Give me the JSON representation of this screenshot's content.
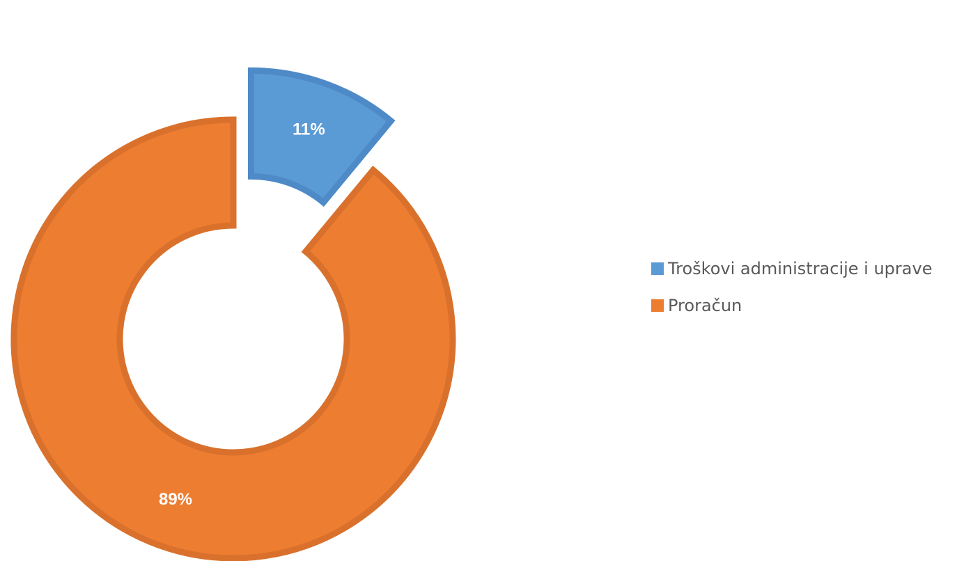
{
  "chart_data": {
    "type": "pie",
    "subtype": "doughnut-exploded",
    "title": "",
    "series": [
      {
        "name": "",
        "slices": [
          {
            "label": "Troškovi administracije i uprave",
            "value": 11,
            "display": "11%",
            "color": "#5B9BD5",
            "stroke": "#4E8AC7"
          },
          {
            "label": "Proračun",
            "value": 89,
            "display": "89%",
            "color": "#ED7D31",
            "stroke": "#D9712C"
          }
        ]
      }
    ],
    "legend": {
      "position": "right",
      "entries": [
        "Troškovi administracije i uprave",
        "Proračun"
      ]
    }
  }
}
